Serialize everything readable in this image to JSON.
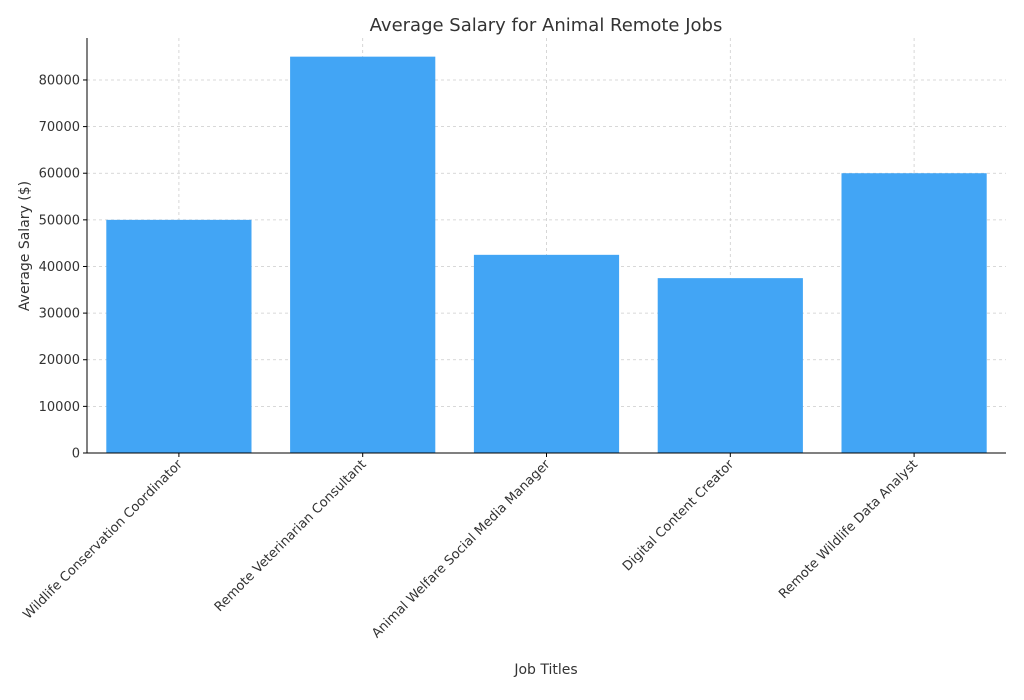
{
  "chart_data": {
    "type": "bar",
    "title": "Average Salary for Animal Remote Jobs",
    "xlabel": "Job Titles",
    "ylabel": "Average Salary ($)",
    "categories": [
      "Wildlife Conservation Coordinator",
      "Remote Veterinarian Consultant",
      "Animal Welfare Social Media Manager",
      "Digital Content Creator",
      "Remote Wildlife Data Analyst"
    ],
    "values": [
      50000,
      85000,
      42500,
      37500,
      60000
    ],
    "ylim": [
      0,
      89000
    ],
    "yticks": [
      0,
      10000,
      20000,
      30000,
      40000,
      50000,
      60000,
      70000,
      80000
    ],
    "grid": true,
    "bar_color": "#42a5f5"
  }
}
